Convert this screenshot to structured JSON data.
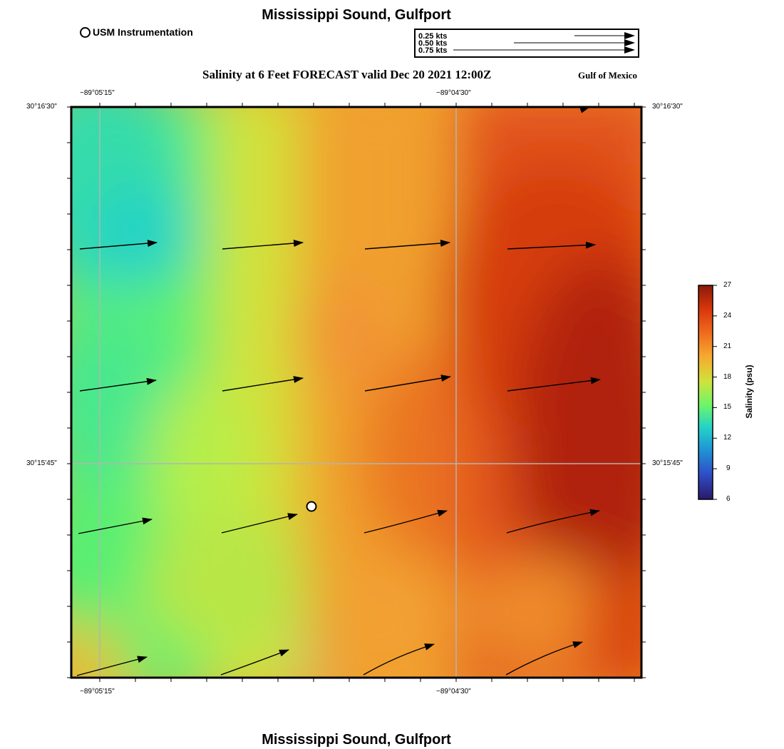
{
  "header": {
    "title": "Mississippi Sound, Gulfport",
    "subtitle": "Salinity at 6 Feet FORECAST valid Dec 20 2021 12:00Z",
    "region_label": "Gulf of Mexico"
  },
  "footer": {
    "title": "Mississippi Sound, Gulfport"
  },
  "legend": {
    "station_label": "USM Instrumentation",
    "speed_scale": [
      {
        "label": "0.25 kts",
        "speed": 0.25
      },
      {
        "label": "0.50 kts",
        "speed": 0.5
      },
      {
        "label": "0.75 kts",
        "speed": 0.75
      }
    ]
  },
  "axes": {
    "longitude_ticks": [
      "−89°05'15\"",
      "−89°04'30\""
    ],
    "latitude_ticks": [
      "30°16'30\"",
      "30°15'45\""
    ]
  },
  "colorbar": {
    "title": "Salinity (psu)",
    "ticks": [
      "27",
      "24",
      "21",
      "18",
      "15",
      "12",
      "9",
      "6"
    ],
    "min": 6,
    "max": 27,
    "colors": [
      "#2a1a6a",
      "#2f4fc8",
      "#1e9ad6",
      "#26d4c4",
      "#6cf56a",
      "#cfe33c",
      "#f7a82e",
      "#ee6a1e",
      "#d8360c",
      "#8a1a08"
    ]
  },
  "map": {
    "colors": {
      "frame": "#000000",
      "grid": "#b4b4b4",
      "vector": "#000000",
      "station_fill": "#ffffff"
    },
    "station": {
      "name": "USM Instrumentation"
    }
  }
}
